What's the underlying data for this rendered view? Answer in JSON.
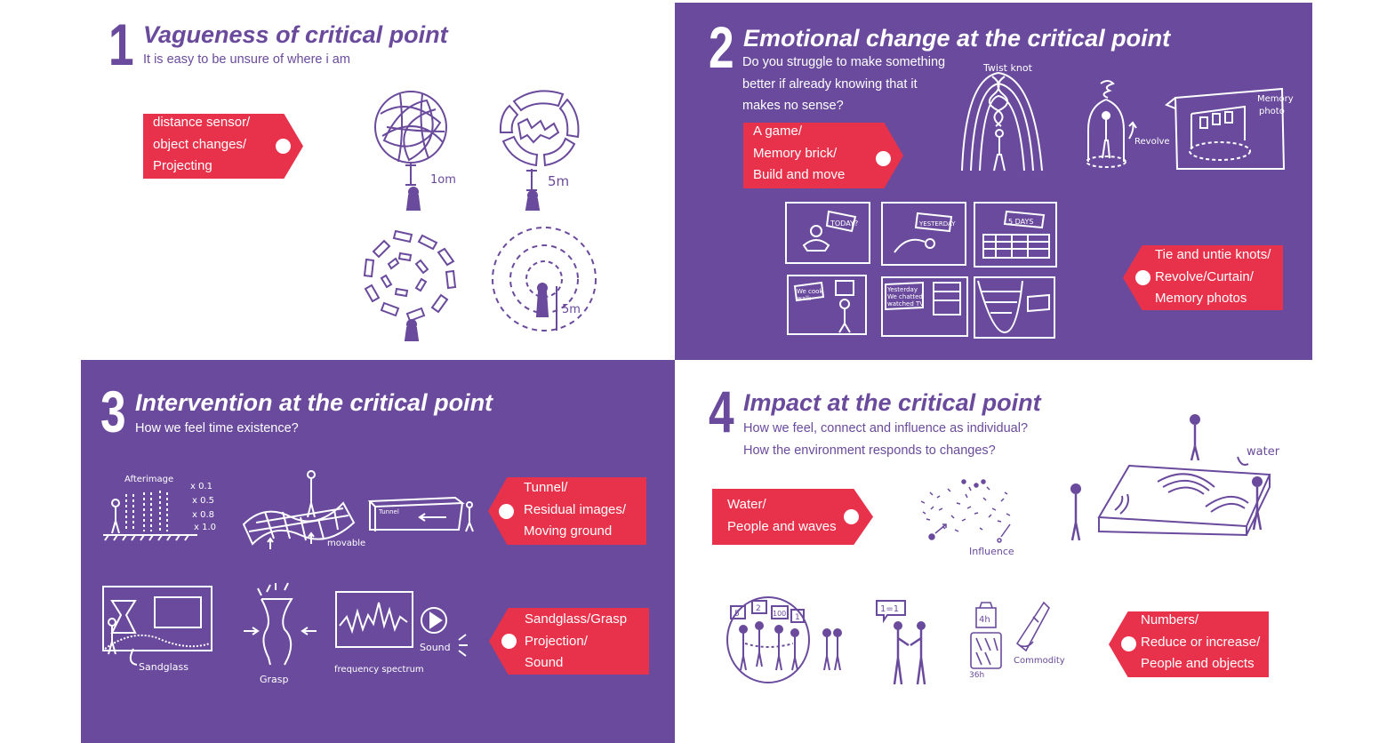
{
  "colors": {
    "purple": "#6a4a9c",
    "red": "#e8314a",
    "white": "#ffffff"
  },
  "sections": [
    {
      "number": "1",
      "title": "Vagueness of critical point",
      "subtitle": [
        "It is easy to be unsure of where i am"
      ],
      "tags": [
        {
          "lines": [
            "distance sensor/",
            "object changes/",
            "Projecting"
          ]
        }
      ],
      "sketch_labels": [
        "1om",
        "5m",
        "5m"
      ]
    },
    {
      "number": "2",
      "title": "Emotional change at the critical point",
      "subtitle": [
        "Do you struggle to make something",
        "better if already knowing that it",
        "makes no sense?"
      ],
      "tags": [
        {
          "lines": [
            "A game/",
            "Memory brick/",
            "Build and move"
          ]
        },
        {
          "lines": [
            "Tie and untie knots/",
            "Revolve/Curtain/",
            "Memory photos"
          ]
        }
      ],
      "sketch_labels": [
        "Twist knot",
        "Revolve",
        "Memory",
        "photo",
        "TODAY?",
        "YESTERDAY",
        "5 DAYS",
        "We cook",
        "walk",
        "Yesterday",
        "We chatted",
        "watched TV"
      ]
    },
    {
      "number": "3",
      "title": "Intervention at the critical point",
      "subtitle": [
        "How we feel time existence?"
      ],
      "tags": [
        {
          "lines": [
            "Tunnel/",
            "Residual images/",
            "Moving ground"
          ]
        },
        {
          "lines": [
            "Sandglass/Grasp",
            "Projection/",
            "Sound"
          ]
        }
      ],
      "sketch_labels": [
        "Afterimage",
        "x 0.1",
        "x 0.5",
        "x 0.8",
        "x 1.0",
        "movable",
        "Tunnel",
        "Sandglass",
        "Grasp",
        "frequency spectrum",
        "Sound"
      ]
    },
    {
      "number": "4",
      "title": "Impact at the critical point",
      "subtitle": [
        "How we feel, connect and influence as individual?",
        "How the environment responds to changes?"
      ],
      "tags": [
        {
          "lines": [
            "Water/",
            "People and waves"
          ]
        },
        {
          "lines": [
            "Numbers/",
            "Reduce or increase/",
            "People and objects"
          ]
        }
      ],
      "sketch_labels": [
        "Influence",
        "water",
        "1=1",
        "4h",
        "36h",
        "Commodity",
        "5",
        "2",
        "100",
        "1"
      ]
    }
  ]
}
